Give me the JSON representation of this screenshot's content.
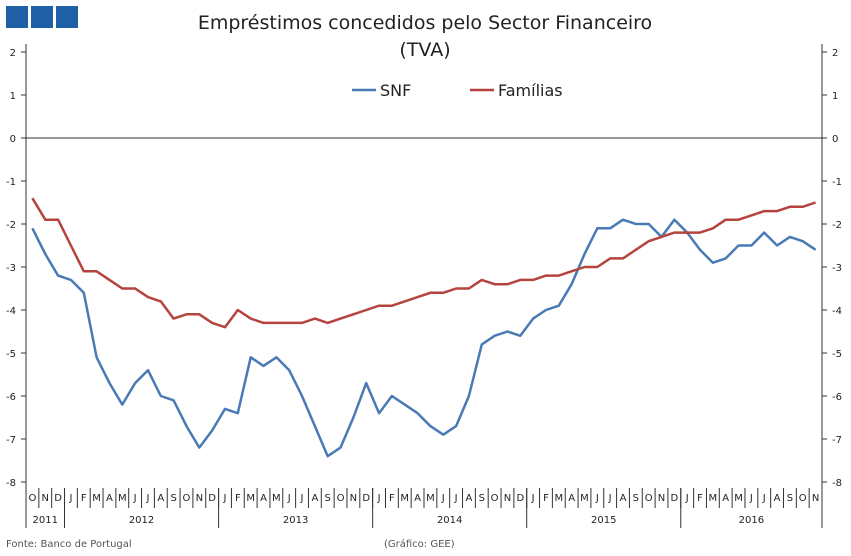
{
  "logo": {
    "colors": [
      "#1f5fa6",
      "#1f5fa6",
      "#1f5fa6"
    ]
  },
  "chart_data": {
    "type": "line",
    "title": "Empréstimos concedidos pelo Sector Financeiro",
    "subtitle": "(TVA)",
    "legend_position": "top-center",
    "ylim": [
      -8,
      2
    ],
    "y_ticks": [
      "2",
      "1",
      "0",
      "-1",
      "-2",
      "-3",
      "-4",
      "-5",
      "-6",
      "-7",
      "-8"
    ],
    "y_axis_both_sides": true,
    "grid": false,
    "month_labels": [
      "O",
      "N",
      "D",
      "J",
      "F",
      "M",
      "A",
      "M",
      "J",
      "J",
      "A",
      "S",
      "O",
      "N",
      "D",
      "J",
      "F",
      "M",
      "A",
      "M",
      "J",
      "J",
      "A",
      "S",
      "O",
      "N",
      "D",
      "J",
      "F",
      "M",
      "A",
      "M",
      "J",
      "J",
      "A",
      "S",
      "O",
      "N",
      "D",
      "J",
      "F",
      "M",
      "A",
      "M",
      "J",
      "J",
      "A",
      "S",
      "O",
      "N",
      "D",
      "J",
      "F",
      "M",
      "A",
      "M",
      "J",
      "J",
      "A",
      "S",
      "O",
      "N"
    ],
    "years": [
      {
        "label": "2011",
        "months": 3
      },
      {
        "label": "2012",
        "months": 12
      },
      {
        "label": "2013",
        "months": 12
      },
      {
        "label": "2014",
        "months": 12
      },
      {
        "label": "2015",
        "months": 12
      },
      {
        "label": "2016",
        "months": 11
      }
    ],
    "series": [
      {
        "name": "SNF",
        "color": "#4a7ab5",
        "values": [
          -2.1,
          -2.7,
          -3.2,
          -3.3,
          -3.6,
          -5.1,
          -5.7,
          -6.2,
          -5.7,
          -5.4,
          -6.0,
          -6.1,
          -6.7,
          -7.2,
          -6.8,
          -6.3,
          -6.4,
          -5.1,
          -5.3,
          -5.1,
          -5.4,
          -6.0,
          -6.7,
          -7.4,
          -7.2,
          -6.5,
          -5.7,
          -6.4,
          -6.0,
          -6.2,
          -6.4,
          -6.7,
          -6.9,
          -6.7,
          -6.0,
          -4.8,
          -4.6,
          -4.5,
          -4.6,
          -4.2,
          -4.0,
          -3.9,
          -3.4,
          -2.7,
          -2.1,
          -2.1,
          -1.9,
          -2.0,
          -2.0,
          -2.3,
          -1.9,
          -2.2,
          -2.6,
          -2.9,
          -2.8,
          -2.5,
          -2.5,
          -2.2,
          -2.5,
          -2.3,
          -2.4,
          -2.6
        ]
      },
      {
        "name": "Famílias",
        "color": "#b5443f",
        "values": [
          -1.4,
          -1.9,
          -1.9,
          -2.5,
          -3.1,
          -3.1,
          -3.3,
          -3.5,
          -3.5,
          -3.7,
          -3.8,
          -4.2,
          -4.1,
          -4.1,
          -4.3,
          -4.4,
          -4.0,
          -4.2,
          -4.3,
          -4.3,
          -4.3,
          -4.3,
          -4.2,
          -4.3,
          -4.2,
          -4.1,
          -4.0,
          -3.9,
          -3.9,
          -3.8,
          -3.7,
          -3.6,
          -3.6,
          -3.5,
          -3.5,
          -3.3,
          -3.4,
          -3.4,
          -3.3,
          -3.3,
          -3.2,
          -3.2,
          -3.1,
          -3.0,
          -3.0,
          -2.8,
          -2.8,
          -2.6,
          -2.4,
          -2.3,
          -2.2,
          -2.2,
          -2.2,
          -2.1,
          -1.9,
          -1.9,
          -1.8,
          -1.7,
          -1.7,
          -1.6,
          -1.6,
          -1.5
        ]
      }
    ]
  },
  "footer": {
    "source": "Fonte: Banco de Portugal",
    "credit": "(Gráfico: GEE)"
  }
}
